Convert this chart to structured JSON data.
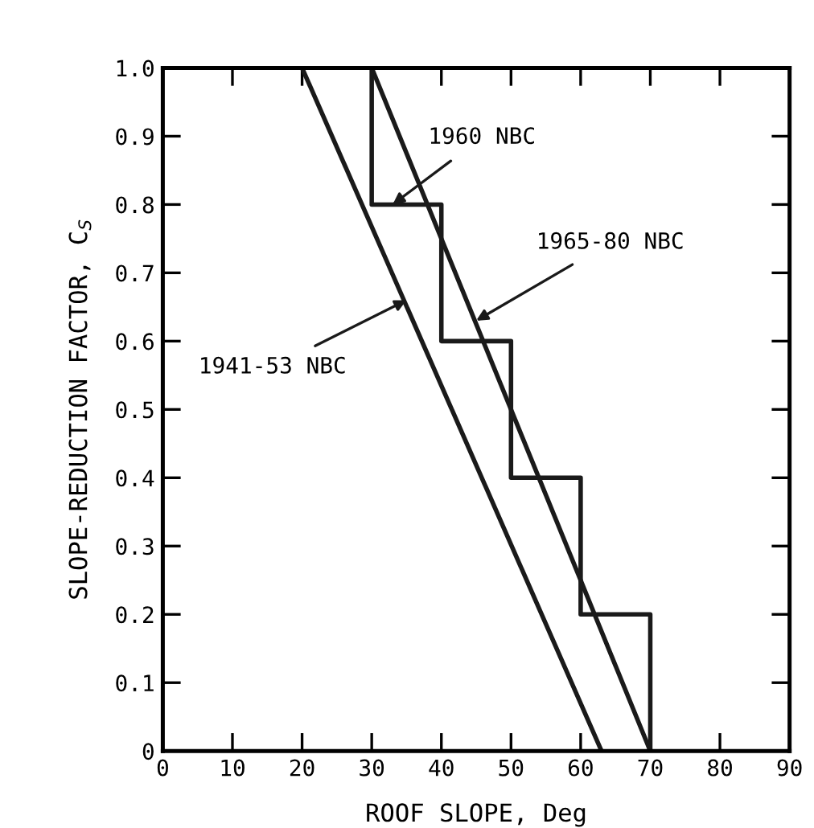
{
  "chart_data": {
    "type": "line",
    "xlabel": "ROOF SLOPE, Deg",
    "ylabel": "SLOPE-REDUCTION FACTOR, C$_{S}$",
    "series": [
      {
        "x": [
          20,
          63
        ],
        "values": [
          1.0,
          0
        ],
        "color": "#1a1a1a"
      },
      {
        "x": [
          30,
          70
        ],
        "values": [
          1.0,
          0
        ],
        "color": "#1a1a1a"
      },
      {
        "type": "step",
        "x": [
          30,
          30,
          40,
          50,
          60,
          70
        ],
        "values": [
          1.0,
          0.8,
          0.6,
          0.4,
          0.2,
          0
        ],
        "color": "#1a1a1a"
      }
    ],
    "annotations": [
      {
        "text": "1960 NBC",
        "x": 33,
        "y": 0.8
      },
      {
        "text": "1965-80 NBC",
        "x": 45,
        "y": 0.63
      },
      {
        "text": "1941-53 NBC",
        "x": 35,
        "y": 0.66
      }
    ],
    "xlim": [
      0,
      90
    ],
    "ylim": [
      0,
      1.0
    ],
    "xticks": [
      0,
      10,
      20,
      30,
      40,
      50,
      60,
      70,
      80,
      90
    ],
    "yticks": [
      0,
      {
        "value": 0.1,
        "label": "0.1"
      },
      {
        "value": 0.2,
        "label": "0.2"
      },
      {
        "value": 0.3,
        "label": "0.3"
      },
      {
        "value": 0.4,
        "label": "0.4"
      },
      {
        "value": 0.5,
        "label": "0.5"
      },
      {
        "value": 0.6,
        "label": "0.6"
      },
      {
        "value": 0.7,
        "label": "0.7"
      },
      {
        "value": 0.8,
        "label": "0.8"
      },
      {
        "value": 0.9,
        "label": "0.9"
      },
      {
        "value": 1.0,
        "label": "1.0"
      }
    ],
    "grid": false,
    "legend": false
  }
}
